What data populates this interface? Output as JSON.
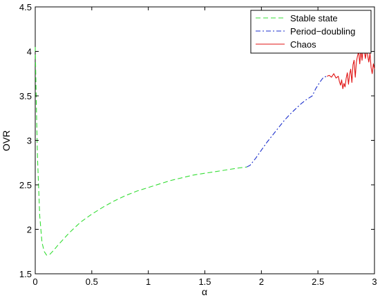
{
  "chart_data": {
    "type": "line",
    "title": "",
    "xlabel": "α",
    "ylabel": "OVR",
    "xlim": [
      0,
      3
    ],
    "ylim": [
      1.5,
      4.5
    ],
    "grid": false,
    "legend_position": "top-right",
    "x_ticks": [
      "0",
      "0.5",
      "1",
      "1.5",
      "2",
      "2.5",
      "3"
    ],
    "y_ticks": [
      "1.5",
      "2",
      "2.5",
      "3",
      "3.5",
      "4",
      "4.5"
    ],
    "series": [
      {
        "name": "Stable state",
        "color": "#33dd33",
        "dash": "dashed",
        "x": [
          0.0,
          0.01,
          0.02,
          0.04,
          0.06,
          0.08,
          0.1,
          0.13,
          0.16,
          0.2,
          0.3,
          0.4,
          0.5,
          0.6,
          0.7,
          0.8,
          0.9,
          1.0,
          1.1,
          1.2,
          1.3,
          1.4,
          1.5,
          1.6,
          1.7,
          1.8,
          1.87
        ],
        "y": [
          4.05,
          3.4,
          2.8,
          2.15,
          1.85,
          1.75,
          1.71,
          1.72,
          1.76,
          1.82,
          1.96,
          2.08,
          2.17,
          2.25,
          2.32,
          2.38,
          2.43,
          2.47,
          2.51,
          2.55,
          2.58,
          2.61,
          2.63,
          2.65,
          2.67,
          2.69,
          2.7
        ]
      },
      {
        "name": "Period−doubling",
        "color": "#1a2ecc",
        "dash": "dashdot",
        "x": [
          1.87,
          1.9,
          1.95,
          2.0,
          2.05,
          2.1,
          2.15,
          2.2,
          2.25,
          2.3,
          2.35,
          2.4,
          2.45,
          2.48,
          2.52,
          2.55,
          2.58
        ],
        "y": [
          2.7,
          2.72,
          2.8,
          2.89,
          2.98,
          3.06,
          3.14,
          3.22,
          3.29,
          3.35,
          3.41,
          3.46,
          3.5,
          3.58,
          3.66,
          3.71,
          3.72
        ]
      },
      {
        "name": "Chaos",
        "color": "#e01010",
        "dash": "solid",
        "x": [
          2.58,
          2.6,
          2.62,
          2.64,
          2.66,
          2.68,
          2.69,
          2.7,
          2.71,
          2.72,
          2.73,
          2.74,
          2.75,
          2.76,
          2.77,
          2.78,
          2.79,
          2.8,
          2.81,
          2.82,
          2.83,
          2.84,
          2.85,
          2.86,
          2.87,
          2.88,
          2.89,
          2.9,
          2.91,
          2.92,
          2.93,
          2.94,
          2.95,
          2.96,
          2.97,
          2.98,
          2.99,
          3.0
        ],
        "y": [
          3.72,
          3.73,
          3.71,
          3.75,
          3.7,
          3.72,
          3.66,
          3.62,
          3.68,
          3.58,
          3.64,
          3.6,
          3.7,
          3.76,
          3.63,
          3.74,
          3.8,
          3.65,
          3.85,
          3.9,
          3.71,
          3.88,
          3.95,
          4.0,
          3.86,
          4.02,
          3.9,
          4.05,
          4.0,
          3.92,
          4.03,
          3.95,
          3.88,
          3.98,
          3.82,
          3.75,
          3.86,
          3.8
        ]
      }
    ]
  }
}
